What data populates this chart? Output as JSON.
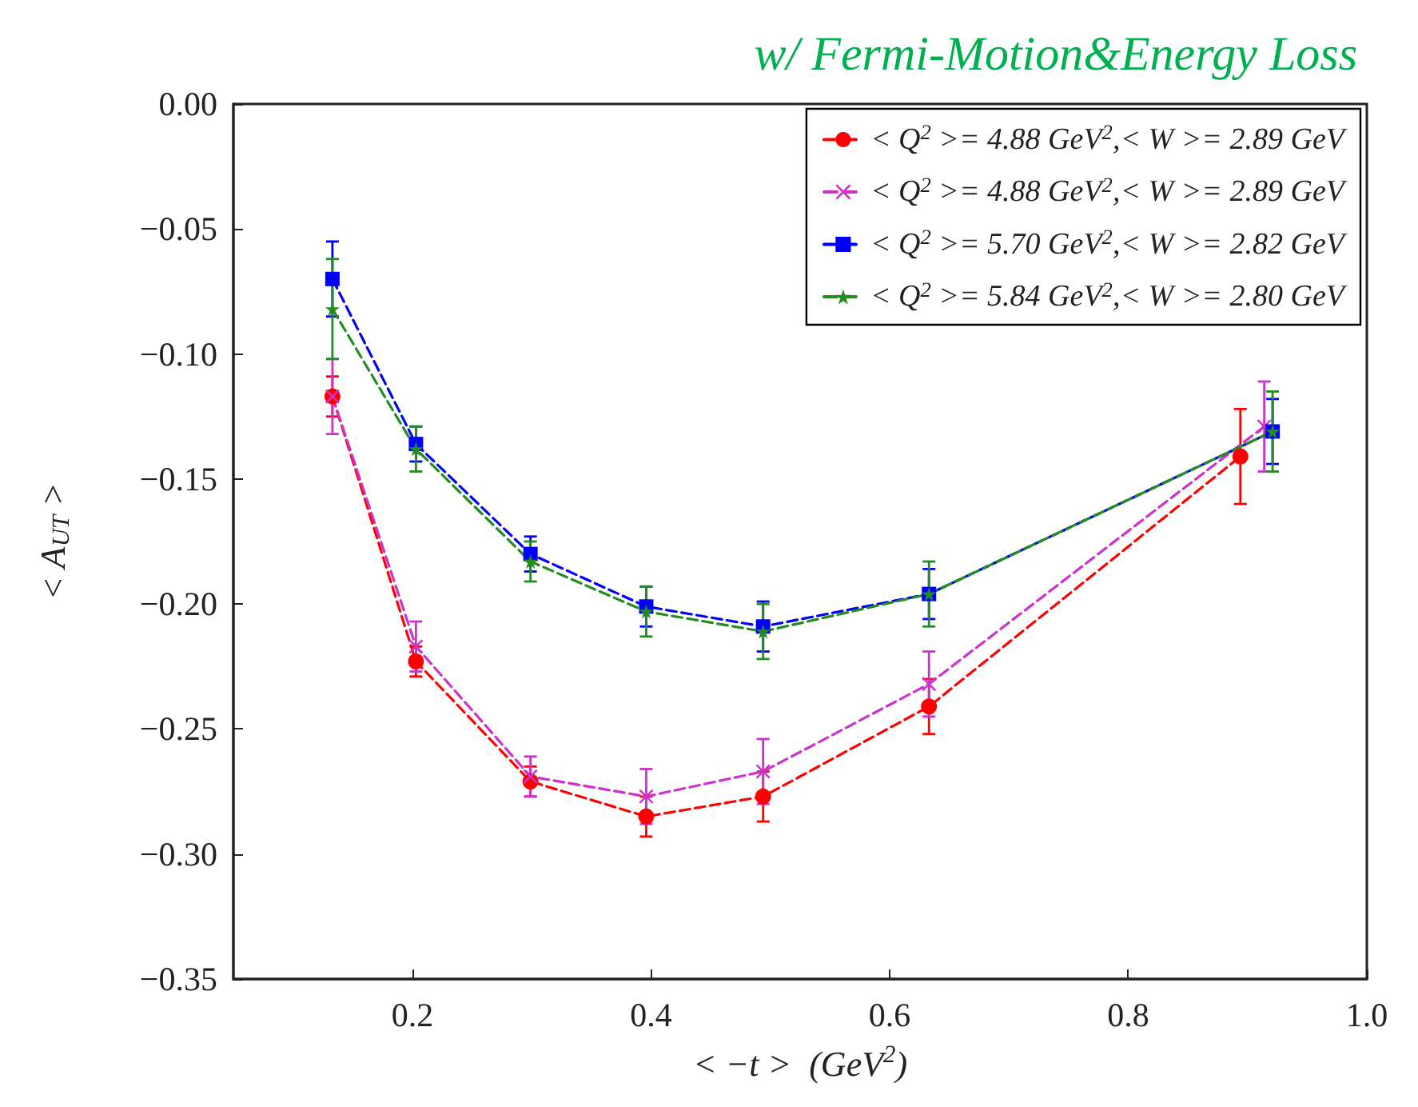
{
  "chart_data": {
    "type": "line",
    "title": "w/ Fermi-Motion&Energy Loss",
    "xlabel": "< −t >  (GeV$^{2}$)",
    "ylabel": "< A$_{UT}$ >",
    "xlim": [
      0.05,
      1.0
    ],
    "xticks": [
      0.2,
      0.4,
      0.6,
      0.8,
      {
        "value": 1.0,
        "label": "1.0"
      }
    ],
    "ylim": [
      -0.35,
      0.0
    ],
    "yticks": [
      -0.35,
      {
        "value": -0.3,
        "label": "−0.30"
      },
      -0.25,
      {
        "value": -0.2,
        "label": "−0.20"
      },
      -0.15,
      {
        "value": -0.1,
        "label": "−0.10"
      },
      -0.05,
      {
        "value": 0.0,
        "label": "0.00"
      }
    ],
    "legend": "top right",
    "grid": false,
    "line_style": "dashed",
    "series": [
      {
        "name": "< Q$^{2}$ >= 4.88 GeV$^{2}$,< W >= 2.89 GeV",
        "color": "#ff0000",
        "marker": "circle",
        "x": [
          0.133,
          0.203,
          0.299,
          0.396,
          0.494,
          0.633,
          0.894
        ],
        "values": [
          -0.117,
          -0.223,
          -0.271,
          -0.285,
          -0.277,
          -0.241,
          -0.141
        ],
        "errors": [
          0.008,
          0.006,
          0.006,
          0.008,
          0.01,
          0.011,
          0.019
        ]
      },
      {
        "name": "< Q$^{2}$ >= 4.88 GeV$^{2}$,< W >= 2.89 GeV",
        "color": "#cc33cc",
        "marker": "cross",
        "x": [
          0.133,
          0.203,
          0.299,
          0.396,
          0.494,
          0.633,
          0.914
        ],
        "values": [
          -0.117,
          -0.217,
          -0.269,
          -0.277,
          -0.267,
          -0.232,
          -0.129
        ],
        "errors": [
          0.015,
          0.01,
          0.008,
          0.011,
          0.013,
          0.013,
          0.018
        ]
      },
      {
        "name": "< Q$^{2}$ >= 5.70 GeV$^{2}$,< W >= 2.82 GeV",
        "color": "#0000ff",
        "marker": "square",
        "x": [
          0.133,
          0.203,
          0.299,
          0.396,
          0.494,
          0.633,
          0.921
        ],
        "values": [
          -0.07,
          -0.136,
          -0.18,
          -0.201,
          -0.209,
          -0.196,
          -0.131
        ],
        "errors": [
          0.015,
          0.007,
          0.007,
          0.008,
          0.01,
          0.01,
          0.013
        ]
      },
      {
        "name": "< Q$^{2}$ >= 5.84 GeV$^{2}$,< W >= 2.80 GeV",
        "color": "#228b22",
        "marker": "star",
        "x": [
          0.133,
          0.203,
          0.299,
          0.396,
          0.494,
          0.633,
          0.921
        ],
        "values": [
          -0.082,
          -0.138,
          -0.183,
          -0.203,
          -0.211,
          -0.196,
          -0.131
        ],
        "errors": [
          0.02,
          0.009,
          0.008,
          0.01,
          0.011,
          0.013,
          0.016
        ]
      }
    ]
  }
}
